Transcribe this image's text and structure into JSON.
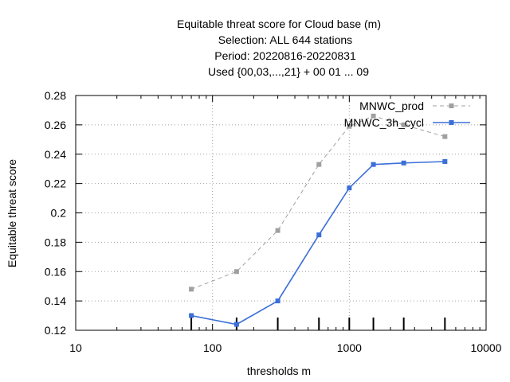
{
  "chart_data": {
    "type": "line",
    "title_lines": [
      "Equitable threat score  for Cloud base (m)",
      "Selection: ALL    644 stations",
      "Period: 20220816-20220831",
      "Used {00,03,...,21} + 00 01 ... 09"
    ],
    "xlabel": "thresholds m",
    "ylabel": "Equitable threat score",
    "xscale": "log",
    "xlim": [
      10,
      10000
    ],
    "ylim": [
      0.12,
      0.28
    ],
    "x_ticks": [
      10,
      100,
      1000,
      10000
    ],
    "x_tick_labels": [
      "10",
      "100",
      "1000",
      "10000"
    ],
    "y_ticks": [
      0.12,
      0.14,
      0.16,
      0.18,
      0.2,
      0.22,
      0.24,
      0.26,
      0.28
    ],
    "y_tick_labels": [
      "0.12",
      "0.14",
      "0.16",
      "0.18",
      "0.2",
      "0.22",
      "0.24",
      "0.26",
      "0.28"
    ],
    "grid": true,
    "legend_position": "top-right",
    "threshold_markers": [
      70,
      150,
      300,
      600,
      1000,
      1500,
      2500,
      5000
    ],
    "series": [
      {
        "name": "MNWC_prod",
        "color": "#a0a0a0",
        "dashed": true,
        "x": [
          70,
          150,
          300,
          600,
          1000,
          1500,
          2500,
          5000
        ],
        "y": [
          0.148,
          0.16,
          0.188,
          0.233,
          0.259,
          0.266,
          0.26,
          0.252
        ]
      },
      {
        "name": "MNWC_3h_cycl",
        "color": "#3b6fd8",
        "dashed": false,
        "x": [
          70,
          150,
          300,
          600,
          1000,
          1500,
          2500,
          5000
        ],
        "y": [
          0.13,
          0.124,
          0.14,
          0.185,
          0.217,
          0.233,
          0.234,
          0.235
        ]
      }
    ]
  }
}
